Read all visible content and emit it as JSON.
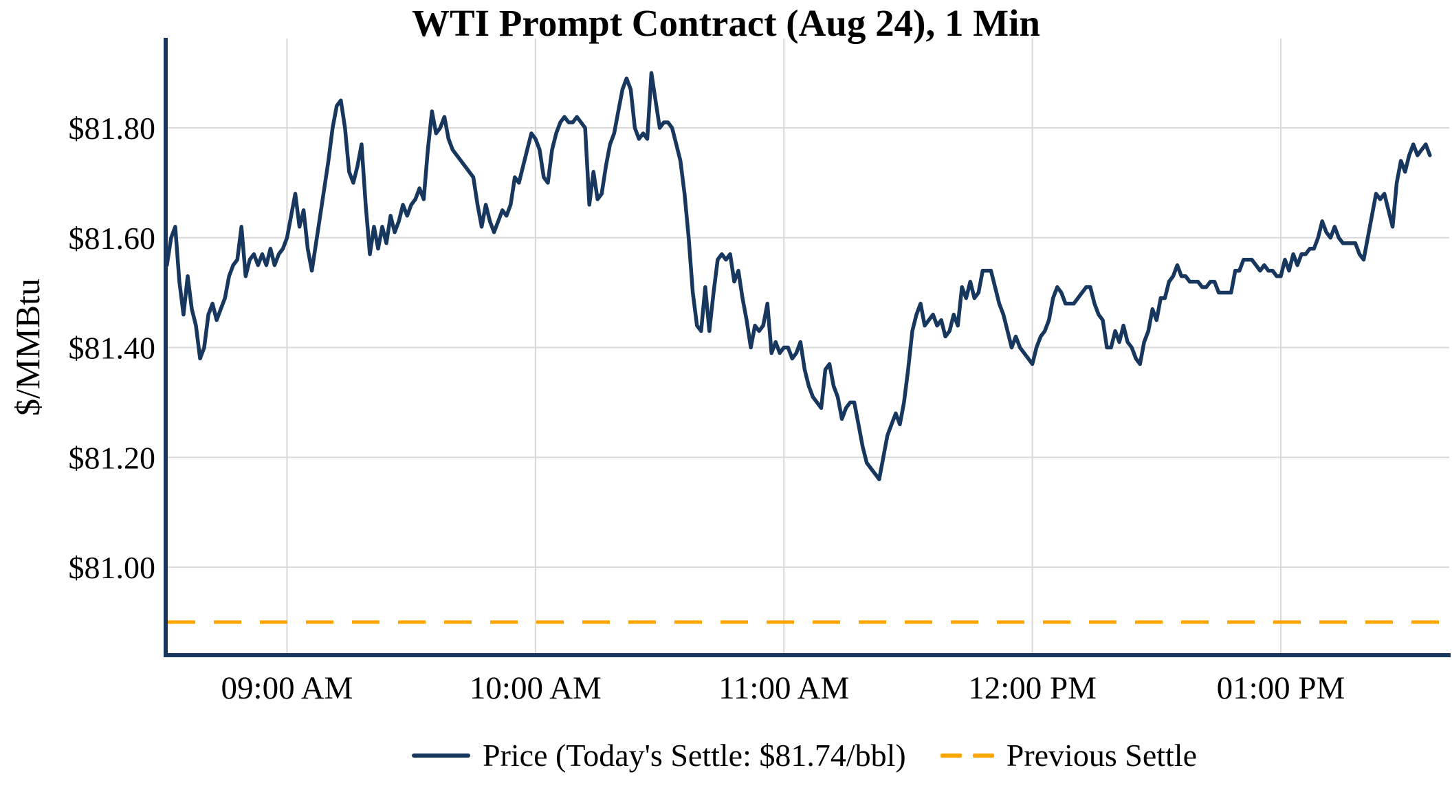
{
  "title": "WTI Prompt Contract (Aug 24), 1 Min",
  "y_axis": {
    "label": "$/MMBtu",
    "tick_labels": [
      "$81.00",
      "$81.20",
      "$81.40",
      "$81.60",
      "$81.80"
    ],
    "tick_values": [
      81.0,
      81.2,
      81.4,
      81.6,
      81.8
    ]
  },
  "x_axis": {
    "tick_labels": [
      "09:00 AM",
      "10:00 AM",
      "11:00 AM",
      "12:00 PM",
      "01:00 PM"
    ],
    "tick_times": [
      "09:00",
      "10:00",
      "11:00",
      "12:00",
      "13:00"
    ]
  },
  "legend": {
    "price_label": "Price (Today's Settle: $81.74/bbl)",
    "previous_settle_label": "Previous Settle"
  },
  "colors": {
    "price_line": "#17375e",
    "previous_settle": "#ffa500",
    "gridline": "#d9d9d9",
    "axis_spine": "#17375e",
    "text": "#000000",
    "background": "#ffffff"
  },
  "chart_data": {
    "type": "line",
    "title": "WTI Prompt Contract (Aug 24), 1 Min",
    "xlabel": "",
    "ylabel": "$/MMBtu",
    "ylim": [
      80.84,
      81.96
    ],
    "xlim": [
      "08:30",
      "13:40"
    ],
    "grid": true,
    "legend_position": "bottom-center",
    "today_settle": 81.74,
    "previous_settle": 80.9,
    "series": [
      {
        "name": "Price",
        "style": "solid",
        "x_start": "08:31",
        "x_step_minutes": 1,
        "values": [
          81.55,
          81.6,
          81.62,
          81.52,
          81.46,
          81.53,
          81.47,
          81.44,
          81.38,
          81.4,
          81.46,
          81.48,
          81.45,
          81.47,
          81.49,
          81.53,
          81.55,
          81.56,
          81.62,
          81.53,
          81.56,
          81.57,
          81.55,
          81.57,
          81.55,
          81.58,
          81.55,
          81.57,
          81.58,
          81.6,
          81.64,
          81.68,
          81.62,
          81.65,
          81.58,
          81.54,
          81.59,
          81.64,
          81.69,
          81.74,
          81.8,
          81.84,
          81.85,
          81.8,
          81.72,
          81.7,
          81.73,
          81.77,
          81.66,
          81.57,
          81.62,
          81.58,
          81.62,
          81.59,
          81.64,
          81.61,
          81.63,
          81.66,
          81.64,
          81.66,
          81.67,
          81.69,
          81.67,
          81.76,
          81.83,
          81.79,
          81.8,
          81.82,
          81.78,
          81.76,
          81.75,
          81.74,
          81.73,
          81.72,
          81.71,
          81.66,
          81.62,
          81.66,
          81.63,
          81.61,
          81.63,
          81.65,
          81.64,
          81.66,
          81.71,
          81.7,
          81.73,
          81.76,
          81.79,
          81.78,
          81.76,
          81.71,
          81.7,
          81.76,
          81.79,
          81.81,
          81.82,
          81.81,
          81.81,
          81.82,
          81.81,
          81.8,
          81.66,
          81.72,
          81.67,
          81.68,
          81.73,
          81.77,
          81.79,
          81.83,
          81.87,
          81.89,
          81.87,
          81.8,
          81.78,
          81.79,
          81.78,
          81.9,
          81.85,
          81.8,
          81.81,
          81.81,
          81.8,
          81.77,
          81.74,
          81.68,
          81.6,
          81.5,
          81.44,
          81.43,
          81.51,
          81.43,
          81.5,
          81.56,
          81.57,
          81.56,
          81.57,
          81.52,
          81.54,
          81.49,
          81.45,
          81.4,
          81.44,
          81.43,
          81.44,
          81.48,
          81.39,
          81.41,
          81.39,
          81.4,
          81.4,
          81.38,
          81.39,
          81.41,
          81.36,
          81.33,
          81.31,
          81.3,
          81.29,
          81.36,
          81.37,
          81.33,
          81.31,
          81.27,
          81.29,
          81.3,
          81.3,
          81.26,
          81.22,
          81.19,
          81.18,
          81.17,
          81.16,
          81.2,
          81.24,
          81.26,
          81.28,
          81.26,
          81.3,
          81.36,
          81.43,
          81.46,
          81.48,
          81.44,
          81.45,
          81.46,
          81.44,
          81.45,
          81.42,
          81.43,
          81.46,
          81.44,
          81.51,
          81.49,
          81.52,
          81.49,
          81.5,
          81.54,
          81.54,
          81.54,
          81.51,
          81.48,
          81.46,
          81.43,
          81.4,
          81.42,
          81.4,
          81.39,
          81.38,
          81.37,
          81.4,
          81.42,
          81.43,
          81.45,
          81.49,
          81.51,
          81.5,
          81.48,
          81.48,
          81.48,
          81.49,
          81.5,
          81.51,
          81.51,
          81.48,
          81.46,
          81.45,
          81.4,
          81.4,
          81.43,
          81.41,
          81.44,
          81.41,
          81.4,
          81.38,
          81.37,
          81.41,
          81.43,
          81.47,
          81.45,
          81.49,
          81.49,
          81.52,
          81.53,
          81.55,
          81.53,
          81.53,
          81.52,
          81.52,
          81.52,
          81.51,
          81.51,
          81.52,
          81.52,
          81.5,
          81.5,
          81.5,
          81.5,
          81.54,
          81.54,
          81.56,
          81.56,
          81.56,
          81.55,
          81.54,
          81.55,
          81.54,
          81.54,
          81.53,
          81.53,
          81.56,
          81.54,
          81.57,
          81.55,
          81.57,
          81.57,
          81.58,
          81.58,
          81.6,
          81.63,
          81.61,
          81.6,
          81.62,
          81.6,
          81.59,
          81.59,
          81.59,
          81.59,
          81.57,
          81.56,
          81.6,
          81.64,
          81.68,
          81.67,
          81.68,
          81.65,
          81.62,
          81.7,
          81.74,
          81.72,
          81.75,
          81.77,
          81.75,
          81.76,
          81.77,
          81.75
        ]
      },
      {
        "name": "Previous Settle",
        "style": "dashed",
        "value": 80.9
      }
    ]
  }
}
